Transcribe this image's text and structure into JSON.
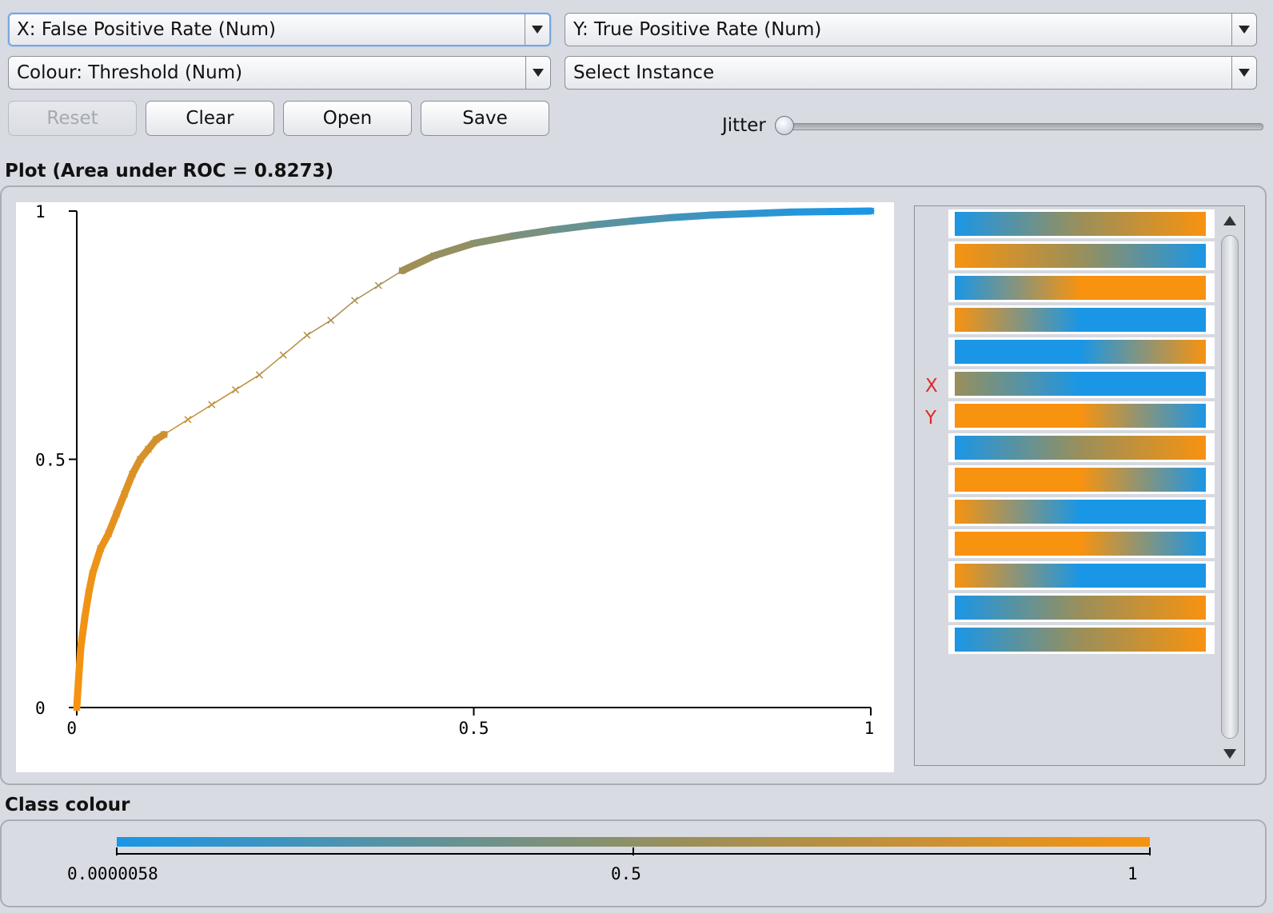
{
  "controls": {
    "x_select": "X: False Positive Rate (Num)",
    "y_select": "Y: True Positive Rate (Num)",
    "colour_select": "Colour: Threshold (Num)",
    "instance_select": "Select Instance",
    "reset_label": "Reset",
    "clear_label": "Clear",
    "open_label": "Open",
    "save_label": "Save",
    "jitter_label": "Jitter",
    "jitter_value": 0
  },
  "plot_title": "Plot (Area under ROC = 0.8273)",
  "class_colour_title": "Class colour",
  "side_panel": {
    "x_marker": "X",
    "y_marker": "Y",
    "strip_count": 14
  },
  "colours": {
    "low": "#1a96e6",
    "mid": "#9a8f5a",
    "high": "#f7930f"
  },
  "legend": {
    "min_label": "0.0000058",
    "mid_label": "0.5",
    "max_label": "1"
  },
  "chart_data": {
    "type": "scatter",
    "title": "",
    "xlabel": "",
    "ylabel": "",
    "xlim": [
      0,
      1
    ],
    "ylim": [
      0,
      1
    ],
    "x_ticks": [
      "0",
      "0.5",
      "1"
    ],
    "y_ticks": [
      "0",
      "0.5",
      "1"
    ],
    "area_under_roc": 0.8273,
    "series": [
      {
        "x": [
          0.0,
          0.002,
          0.005,
          0.01,
          0.015,
          0.02,
          0.03,
          0.04,
          0.05,
          0.06,
          0.07,
          0.08,
          0.09,
          0.1,
          0.11,
          0.14,
          0.17,
          0.2,
          0.23,
          0.26,
          0.29,
          0.32,
          0.35,
          0.38,
          0.41,
          0.45,
          0.5,
          0.55,
          0.6,
          0.65,
          0.7,
          0.75,
          0.8,
          0.85,
          0.9,
          0.95,
          1.0
        ],
        "y": [
          0.0,
          0.05,
          0.12,
          0.18,
          0.23,
          0.27,
          0.32,
          0.35,
          0.39,
          0.43,
          0.47,
          0.5,
          0.52,
          0.54,
          0.55,
          0.58,
          0.61,
          0.64,
          0.67,
          0.71,
          0.75,
          0.78,
          0.82,
          0.85,
          0.88,
          0.91,
          0.935,
          0.95,
          0.962,
          0.972,
          0.98,
          0.987,
          0.992,
          0.995,
          0.998,
          0.999,
          1.0
        ],
        "threshold": [
          1.0,
          0.99,
          0.98,
          0.97,
          0.96,
          0.95,
          0.93,
          0.91,
          0.89,
          0.87,
          0.85,
          0.83,
          0.81,
          0.79,
          0.77,
          0.74,
          0.71,
          0.68,
          0.66,
          0.64,
          0.62,
          0.6,
          0.58,
          0.56,
          0.54,
          0.5,
          0.45,
          0.4,
          0.34,
          0.28,
          0.22,
          0.17,
          0.12,
          0.08,
          0.05,
          0.02,
          5.8e-06
        ]
      }
    ],
    "grid": false,
    "legend": "bottom"
  }
}
